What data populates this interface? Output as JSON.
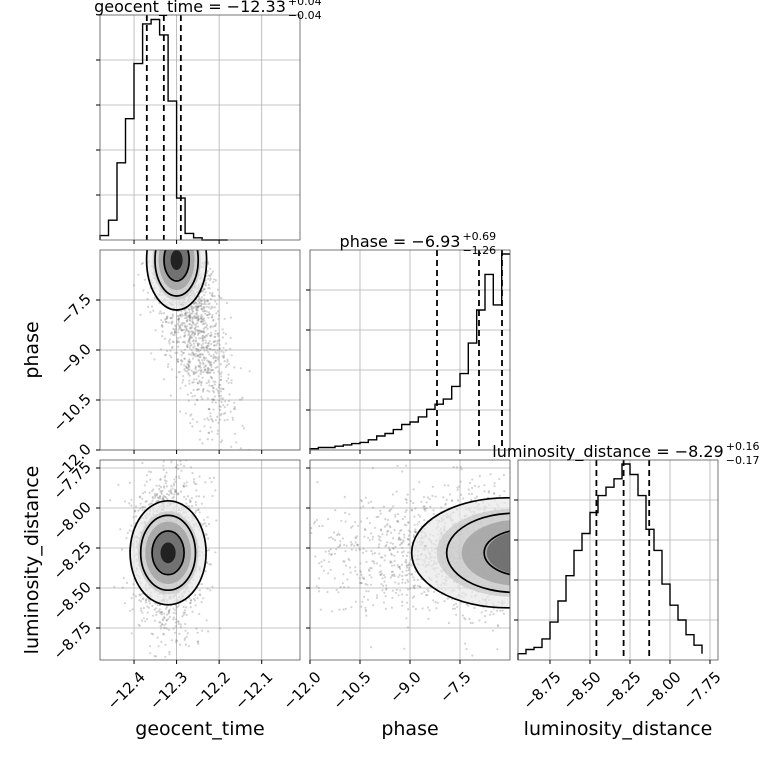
{
  "chart_data": {
    "type": "corner",
    "params": [
      "geocent_time",
      "phase",
      "luminosity_distance"
    ],
    "grid": true,
    "panels": [
      {
        "kind": "histogram",
        "param": "geocent_time",
        "title_main": "geocent_time = −12.33",
        "title_sup": "+0.04",
        "title_sub": "−0.04",
        "quantiles": [
          -12.37,
          -12.33,
          -12.29
        ],
        "bin_edges": [
          -12.48,
          -12.46,
          -12.44,
          -12.42,
          -12.4,
          -12.38,
          -12.36,
          -12.34,
          -12.32,
          -12.3,
          -12.28,
          -12.26,
          -12.24,
          -12.22,
          -12.2,
          -12.18
        ],
        "counts": [
          0.02,
          0.09,
          0.35,
          0.55,
          0.8,
          0.98,
          1.0,
          0.93,
          0.63,
          0.19,
          0.03,
          0.01,
          0,
          0,
          0
        ]
      },
      {
        "kind": "histogram",
        "param": "phase",
        "title_main": "phase = −6.93",
        "title_sup": "+0.69",
        "title_sub": "−1.26",
        "quantiles": [
          -8.19,
          -6.93,
          -6.24
        ],
        "bin_edges": [
          -12.0,
          -11.75,
          -11.5,
          -11.25,
          -11.0,
          -10.75,
          -10.5,
          -10.25,
          -10.0,
          -9.75,
          -9.5,
          -9.25,
          -9.0,
          -8.75,
          -8.5,
          -8.25,
          -8.0,
          -7.75,
          -7.5,
          -7.25,
          -7.0,
          -6.75,
          -6.5,
          -6.25,
          -6.0
        ],
        "counts": [
          0.005,
          0.01,
          0.01,
          0.015,
          0.02,
          0.025,
          0.03,
          0.04,
          0.055,
          0.065,
          0.08,
          0.1,
          0.11,
          0.13,
          0.16,
          0.18,
          0.2,
          0.25,
          0.3,
          0.42,
          0.55,
          0.69,
          0.57,
          0.77
        ]
      },
      {
        "kind": "histogram",
        "param": "luminosity_distance",
        "title_main": "luminosity_distance = −8.29",
        "title_sup": "+0.16",
        "title_sub": "−0.17",
        "quantiles": [
          -8.46,
          -8.29,
          -8.13
        ],
        "bin_edges": [
          -8.95,
          -8.9,
          -8.85,
          -8.8,
          -8.75,
          -8.7,
          -8.65,
          -8.6,
          -8.55,
          -8.5,
          -8.45,
          -8.4,
          -8.35,
          -8.3,
          -8.25,
          -8.2,
          -8.15,
          -8.1,
          -8.05,
          -8.0,
          -7.95,
          -7.9,
          -7.85,
          -7.8
        ],
        "counts": [
          0.03,
          0.05,
          0.06,
          0.1,
          0.18,
          0.28,
          0.4,
          0.52,
          0.6,
          0.7,
          0.78,
          0.82,
          0.86,
          0.93,
          0.88,
          0.78,
          0.62,
          0.52,
          0.36,
          0.26,
          0.19,
          0.12,
          0.07,
          0.03
        ]
      },
      {
        "kind": "2d",
        "x": "geocent_time",
        "y": "phase",
        "contour_levels": 3,
        "peak": {
          "x": -12.3,
          "y": -6.3
        }
      },
      {
        "kind": "2d",
        "x": "geocent_time",
        "y": "luminosity_distance",
        "contour_levels": 3,
        "peak": {
          "x": -12.32,
          "y": -8.28
        }
      },
      {
        "kind": "2d",
        "x": "phase",
        "y": "luminosity_distance",
        "contour_levels": 3,
        "peak": {
          "x": -6.1,
          "y": -8.28
        }
      }
    ],
    "axes": {
      "geocent_time": {
        "label": "geocent_time",
        "range": [
          -12.48,
          -12.01
        ],
        "ticks": [
          -12.4,
          -12.3,
          -12.2,
          -12.1
        ],
        "tick_labels": [
          "−12.4",
          "−12.3",
          "−12.2",
          "−12.1"
        ]
      },
      "phase": {
        "label": "phase",
        "range": [
          -12.0,
          -6.0
        ],
        "ticks": [
          -12.0,
          -10.5,
          -9.0,
          -7.5
        ],
        "tick_labels": [
          "−12.0",
          "−10.5",
          "−9.0",
          "−7.5"
        ]
      },
      "phase_y": {
        "ticks": [
          -12.0,
          -10.5,
          -9.0,
          -7.5
        ],
        "tick_labels": [
          "−12.0",
          "−10.5",
          "−9.0",
          "−7.5"
        ]
      },
      "luminosity_distance": {
        "label": "luminosity_distance",
        "range": [
          -8.95,
          -7.7
        ],
        "ticks": [
          -8.75,
          -8.5,
          -8.25,
          -8.0,
          -7.75
        ],
        "tick_labels": [
          "−8.75",
          "−8.50",
          "−8.25",
          "−8.00",
          "−7.75"
        ]
      }
    }
  }
}
